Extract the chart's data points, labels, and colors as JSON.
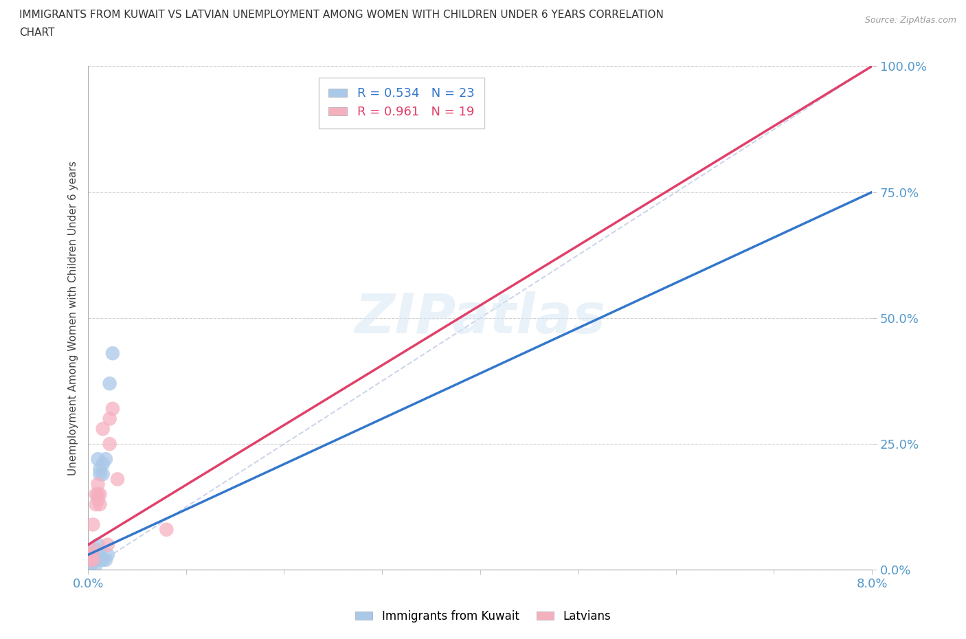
{
  "title_line1": "IMMIGRANTS FROM KUWAIT VS LATVIAN UNEMPLOYMENT AMONG WOMEN WITH CHILDREN UNDER 6 YEARS CORRELATION",
  "title_line2": "CHART",
  "source": "Source: ZipAtlas.com",
  "ylabel": "Unemployment Among Women with Children Under 6 years",
  "xlim": [
    0.0,
    0.08
  ],
  "ylim": [
    0.0,
    1.0
  ],
  "xticks": [
    0.0,
    0.01,
    0.02,
    0.03,
    0.04,
    0.05,
    0.06,
    0.07,
    0.08
  ],
  "xticklabels_show": [
    "0.0%",
    "",
    "",
    "",
    "",
    "",
    "",
    "",
    "8.0%"
  ],
  "yticks": [
    0.0,
    0.25,
    0.5,
    0.75,
    1.0
  ],
  "yticklabels": [
    "0.0%",
    "25.0%",
    "50.0%",
    "75.0%",
    "100.0%"
  ],
  "blue_scatter_x": [
    0.0003,
    0.0003,
    0.0003,
    0.0005,
    0.0005,
    0.0008,
    0.0008,
    0.0008,
    0.001,
    0.001,
    0.001,
    0.001,
    0.0012,
    0.0012,
    0.0012,
    0.0015,
    0.0015,
    0.0015,
    0.0018,
    0.0018,
    0.002,
    0.0022,
    0.0025
  ],
  "blue_scatter_y": [
    0.01,
    0.02,
    0.04,
    0.02,
    0.03,
    0.01,
    0.02,
    0.04,
    0.02,
    0.03,
    0.05,
    0.22,
    0.03,
    0.19,
    0.2,
    0.02,
    0.19,
    0.21,
    0.02,
    0.22,
    0.03,
    0.37,
    0.43
  ],
  "pink_scatter_x": [
    0.0002,
    0.0003,
    0.0005,
    0.0005,
    0.0005,
    0.0008,
    0.0008,
    0.001,
    0.001,
    0.001,
    0.0012,
    0.0012,
    0.0015,
    0.002,
    0.0022,
    0.0022,
    0.0025,
    0.003,
    0.008
  ],
  "pink_scatter_y": [
    0.02,
    0.03,
    0.02,
    0.04,
    0.09,
    0.13,
    0.15,
    0.14,
    0.15,
    0.17,
    0.13,
    0.15,
    0.28,
    0.05,
    0.25,
    0.3,
    0.32,
    0.18,
    0.08
  ],
  "blue_R": 0.534,
  "blue_N": 23,
  "pink_R": 0.961,
  "pink_N": 19,
  "blue_scatter_color": "#aac8e8",
  "pink_scatter_color": "#f5b0c0",
  "blue_line_color": "#3377cc",
  "pink_line_color": "#e0406a",
  "blue_trend_x": [
    0.0,
    0.08
  ],
  "blue_trend_y": [
    0.03,
    0.75
  ],
  "pink_trend_x": [
    0.0,
    0.08
  ],
  "pink_trend_y": [
    0.05,
    1.0
  ],
  "ref_line_x": [
    0.0,
    0.08
  ],
  "ref_line_y": [
    0.0,
    1.0
  ],
  "watermark": "ZIPatlas",
  "background_color": "#ffffff",
  "legend_blue_label": "Immigrants from Kuwait",
  "legend_pink_label": "Latvians",
  "tick_color": "#5599cc"
}
